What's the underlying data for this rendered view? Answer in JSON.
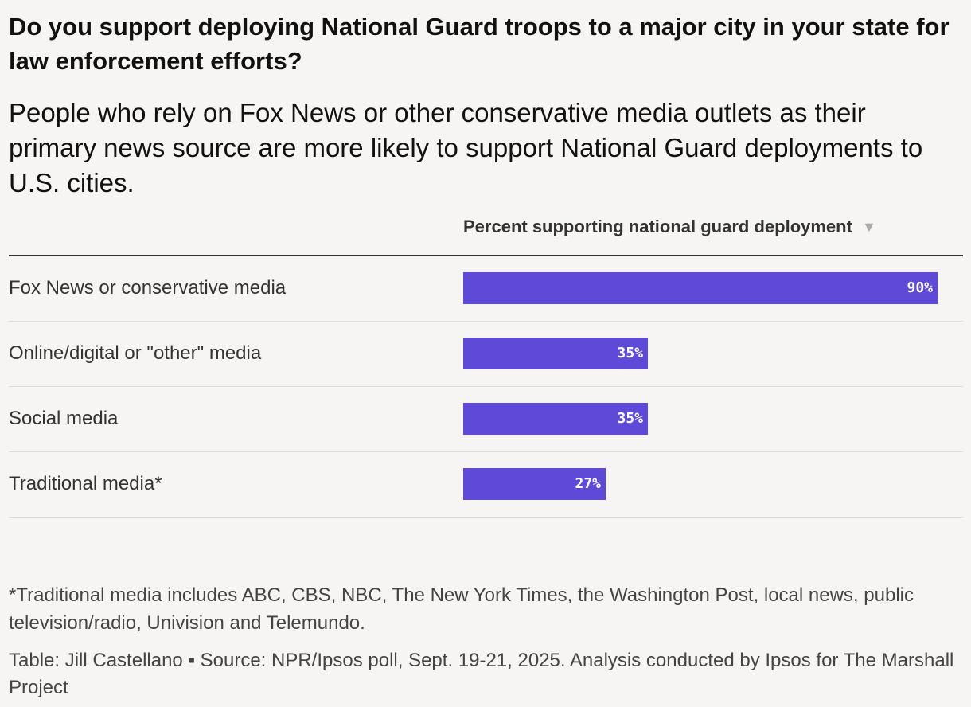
{
  "title": "Do you support deploying National Guard troops to a major city in your state for law enforcement efforts?",
  "subtitle": "People who rely on Fox News or other conservative media outlets as their primary news source are more likely to support National Guard deployments to U.S. cities.",
  "column_header": "Percent supporting national guard deployment",
  "sort_icon": "sort-descending-icon",
  "bar_color": "#5e4ad6",
  "chart_data": {
    "type": "bar",
    "title": "Do you support deploying National Guard troops to a major city in your state for law enforcement efforts?",
    "ylabel": "Percent supporting national guard deployment",
    "categories": [
      "Fox News or conservative media",
      "Online/digital or \"other\" media",
      "Social media",
      "Traditional media*"
    ],
    "values": [
      90,
      35,
      35,
      27
    ],
    "value_labels": [
      "90%",
      "35%",
      "35%",
      "27%"
    ],
    "ylim": [
      0,
      90
    ]
  },
  "footnote": "*Traditional media includes ABC, CBS, NBC, The New York Times, the Washington Post, local news, public television/radio, Univision and Telemundo.",
  "source": "Table: Jill Castellano ▪ Source: NPR/Ipsos poll, Sept. 19-21, 2025. Analysis conducted by Ipsos for The Marshall Project"
}
